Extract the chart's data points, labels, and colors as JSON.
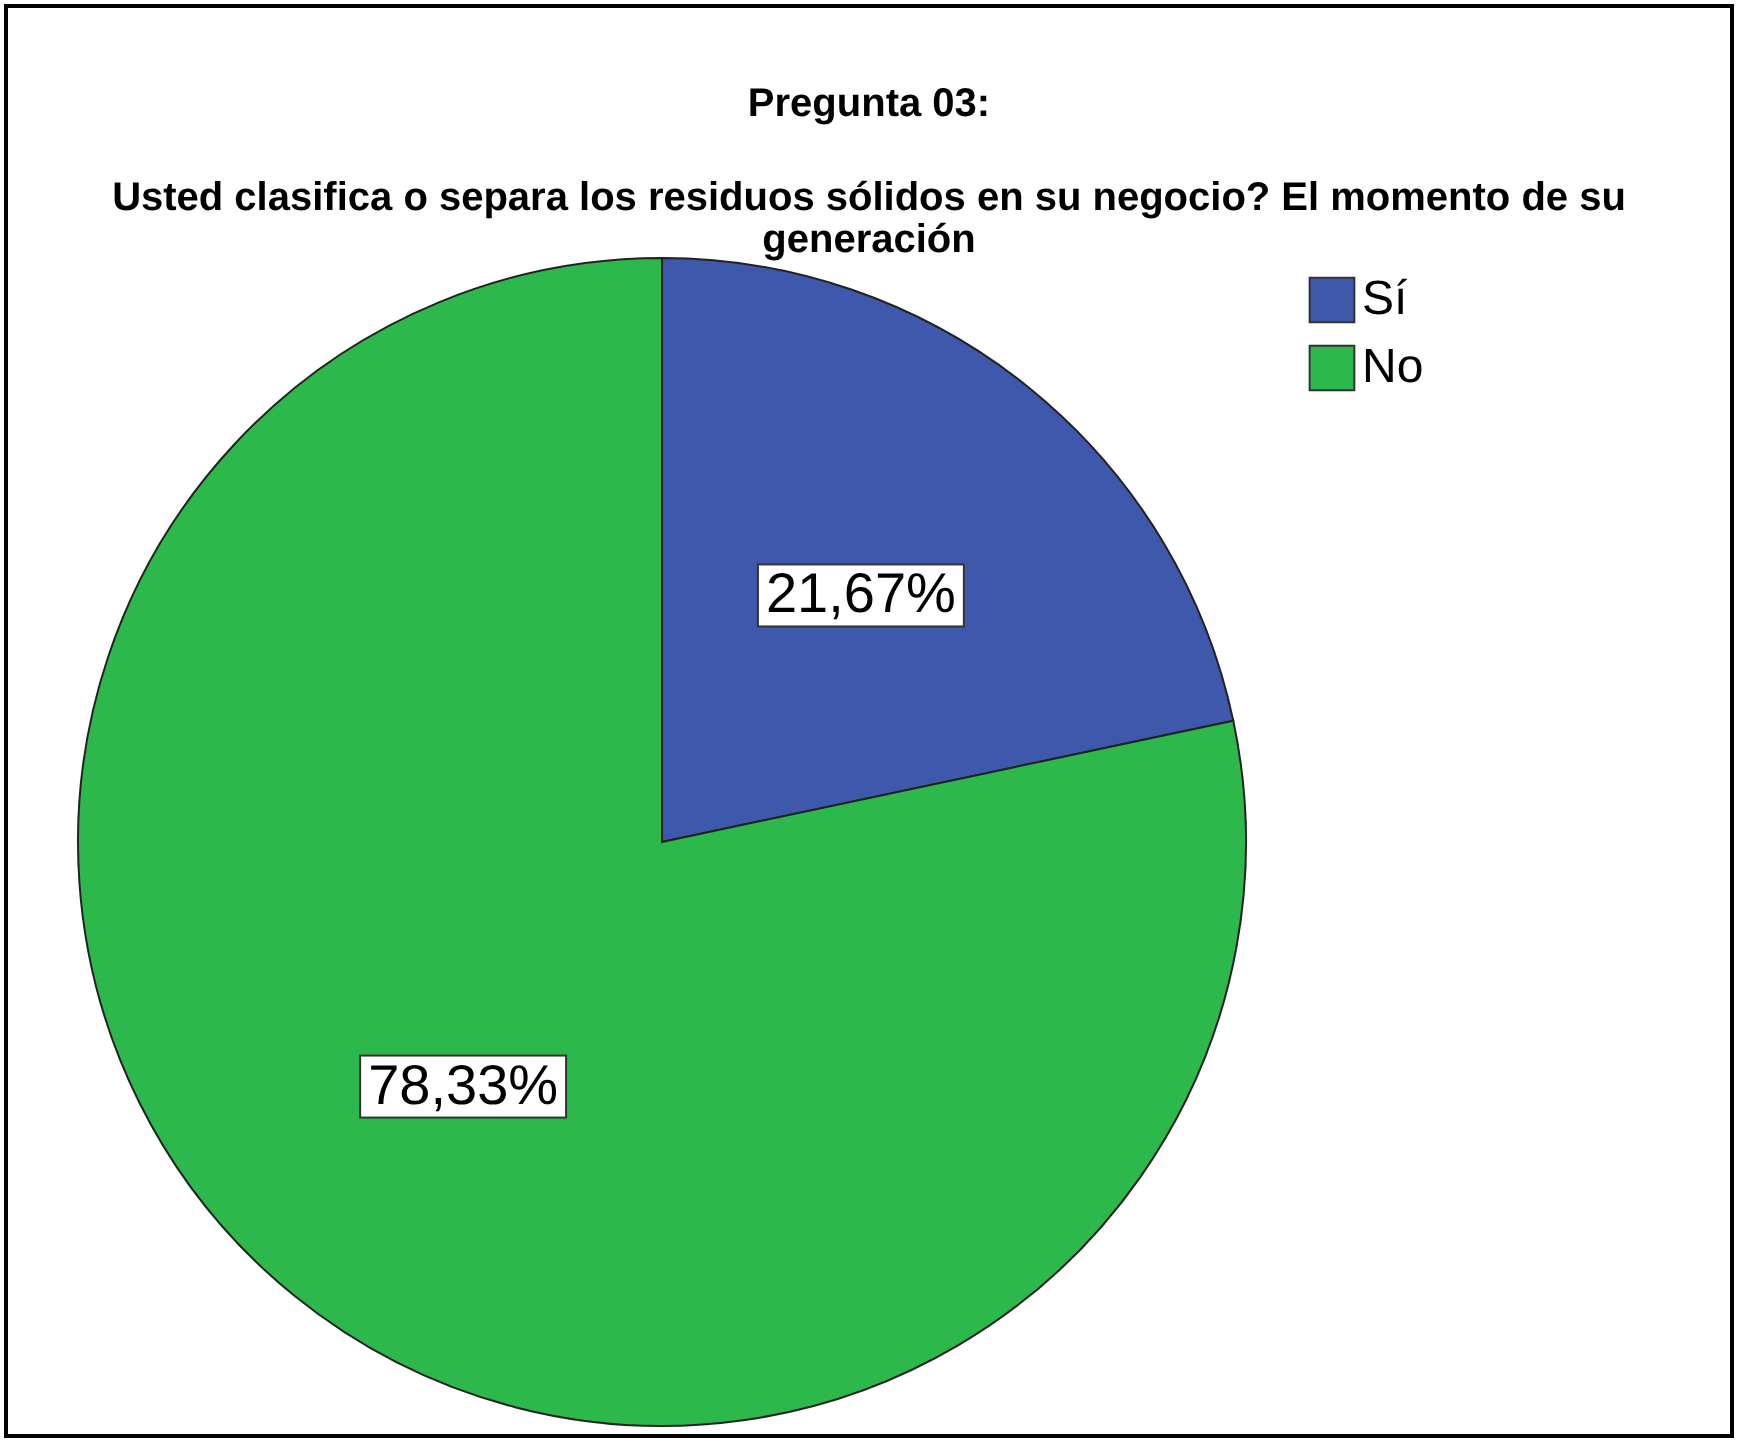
{
  "chart_data": {
    "type": "pie",
    "title": "Pregunta 03:",
    "subtitle": "Usted clasifica o separa los residuos sólidos en su negocio? El momento de su generación",
    "categories": [
      "Sí",
      "No"
    ],
    "values": [
      21.67,
      78.33
    ],
    "colors": [
      "#3e58ab",
      "#2db84b"
    ],
    "value_labels": [
      "21,67%",
      "78,33%"
    ],
    "legend": "top right"
  }
}
